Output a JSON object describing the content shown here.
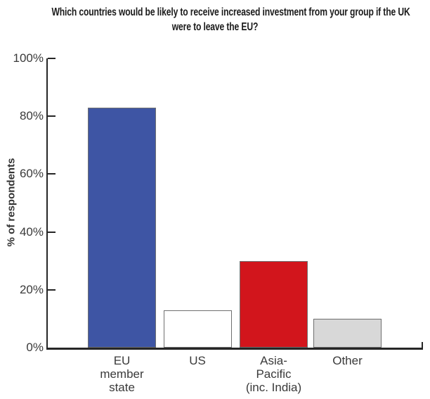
{
  "chart_data": {
    "type": "bar",
    "title": "Which countries would be likely to receive increased investment from your group if the UK were to leave the EU?",
    "title_lines": [
      "Which countries would be likely to receive increased investment from your group if the UK",
      "were to leave the EU?"
    ],
    "categories": [
      "EU member state",
      "US",
      "Asia-Pacific (inc. India)",
      "Other"
    ],
    "category_lines": [
      [
        "EU",
        "member",
        "state"
      ],
      [
        "US"
      ],
      [
        "Asia-",
        "Pacific",
        "(inc. India)"
      ],
      [
        "Other"
      ]
    ],
    "values": [
      83,
      13,
      30,
      10
    ],
    "unit": "%",
    "bar_colors": [
      "#3e55a4",
      "#ffffff",
      "#d2151c",
      "#d8d8d8"
    ],
    "bar_border_color": "#6f6f6f",
    "xlabel": "",
    "ylabel": "% of respondents",
    "ylim": [
      0,
      100
    ],
    "yticks": [
      0,
      20,
      40,
      60,
      80,
      100
    ],
    "ytick_labels": [
      "0%",
      "20%",
      "40%",
      "60%",
      "80%",
      "100%"
    ],
    "grid": false,
    "legend": "none",
    "axis_color": "#262626",
    "text_color": "#3a3a3a",
    "title_color": "#1c1c1c"
  }
}
